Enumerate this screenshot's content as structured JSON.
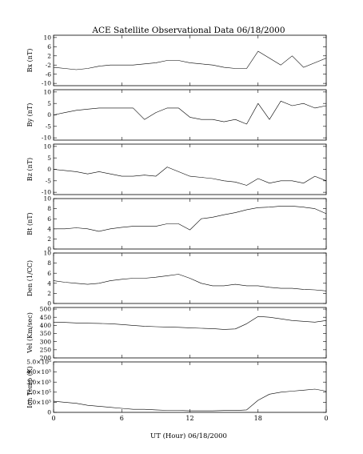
{
  "chart_data": {
    "type": "line",
    "title": "ACE Satellite Observational Data   06/18/2000",
    "xlabel": "UT (Hour)   06/18/2000",
    "x_range_hours": [
      0,
      24
    ],
    "x_ticks": [
      {
        "hour": 0,
        "label": "0"
      },
      {
        "hour": 6,
        "label": "6"
      },
      {
        "hour": 12,
        "label": "12"
      },
      {
        "hour": 18,
        "label": "18"
      },
      {
        "hour": 24,
        "label": "0"
      }
    ],
    "panels": [
      {
        "ylabel": "Bx (nT)",
        "ylim": [
          -11,
          11
        ],
        "y_ticks": [
          {
            "v": 10,
            "label": "10"
          },
          {
            "v": 6,
            "label": "6"
          },
          {
            "v": 2,
            "label": "2"
          },
          {
            "v": -2,
            "label": "-2"
          },
          {
            "v": -6,
            "label": "-6"
          },
          {
            "v": -10,
            "label": "-10"
          }
        ],
        "x": [
          0,
          1,
          2,
          3,
          4,
          5,
          6,
          7,
          8,
          9,
          10,
          11,
          12,
          13,
          14,
          15,
          16,
          17,
          18,
          19,
          20,
          21,
          22,
          23,
          24
        ],
        "y": [
          -3,
          -3.5,
          -4,
          -3.5,
          -2.5,
          -2,
          -2,
          -2,
          -1.5,
          -1,
          0,
          0,
          -1,
          -1.5,
          -2,
          -3,
          -3.5,
          -3.5,
          4,
          1,
          -2,
          2,
          -3,
          -1,
          1
        ]
      },
      {
        "ylabel": "By (nT)",
        "ylim": [
          -11,
          11
        ],
        "y_ticks": [
          {
            "v": 10,
            "label": "10"
          },
          {
            "v": 5,
            "label": "5"
          },
          {
            "v": 0,
            "label": "0"
          },
          {
            "v": -5,
            "label": "-5"
          },
          {
            "v": -10,
            "label": "-10"
          }
        ],
        "x": [
          0,
          1,
          2,
          3,
          4,
          5,
          6,
          7,
          8,
          9,
          10,
          11,
          12,
          13,
          14,
          15,
          16,
          17,
          18,
          19,
          20,
          21,
          22,
          23,
          24
        ],
        "y": [
          0,
          1,
          2,
          2.5,
          3,
          3,
          3,
          3,
          -2,
          1,
          3,
          3,
          -1,
          -2,
          -2,
          -3,
          -2,
          -4,
          5,
          -2,
          6,
          4,
          5,
          3,
          4
        ]
      },
      {
        "ylabel": "Bz (nT)",
        "ylim": [
          -11,
          11
        ],
        "y_ticks": [
          {
            "v": 10,
            "label": "10"
          },
          {
            "v": 5,
            "label": "5"
          },
          {
            "v": 0,
            "label": "0"
          },
          {
            "v": -5,
            "label": "-5"
          },
          {
            "v": -10,
            "label": "-10"
          }
        ],
        "x": [
          0,
          1,
          2,
          3,
          4,
          5,
          6,
          7,
          8,
          9,
          10,
          11,
          12,
          13,
          14,
          15,
          16,
          17,
          18,
          19,
          20,
          21,
          22,
          23,
          24
        ],
        "y": [
          0,
          -0.5,
          -1,
          -2,
          -1,
          -2,
          -3,
          -3,
          -2.5,
          -3,
          1,
          -1,
          -3,
          -3.5,
          -4,
          -5,
          -5.5,
          -7,
          -4,
          -6,
          -5,
          -5,
          -6,
          -3,
          -5
        ]
      },
      {
        "ylabel": "Bt (nT)",
        "ylim": [
          0,
          10
        ],
        "y_ticks": [
          {
            "v": 10,
            "label": "10"
          },
          {
            "v": 8,
            "label": "8"
          },
          {
            "v": 6,
            "label": "6"
          },
          {
            "v": 4,
            "label": "4"
          },
          {
            "v": 2,
            "label": "2"
          },
          {
            "v": 0,
            "label": "0"
          }
        ],
        "x": [
          0,
          1,
          2,
          3,
          4,
          5,
          6,
          7,
          8,
          9,
          10,
          11,
          12,
          13,
          14,
          15,
          16,
          17,
          18,
          19,
          20,
          21,
          22,
          23,
          24
        ],
        "y": [
          4,
          4,
          4.2,
          4,
          3.5,
          4,
          4.3,
          4.5,
          4.5,
          4.5,
          5,
          5,
          3.8,
          6,
          6.3,
          6.8,
          7.2,
          7.8,
          8.2,
          8.3,
          8.5,
          8.5,
          8.3,
          8,
          7
        ]
      },
      {
        "ylabel": "Den (1/CC)",
        "ylim": [
          0,
          10
        ],
        "y_ticks": [
          {
            "v": 10,
            "label": "10"
          },
          {
            "v": 8,
            "label": "8"
          },
          {
            "v": 6,
            "label": "6"
          },
          {
            "v": 4,
            "label": "4"
          },
          {
            "v": 2,
            "label": "2"
          },
          {
            "v": 0,
            "label": "0"
          }
        ],
        "x": [
          0,
          1,
          2,
          3,
          4,
          5,
          6,
          7,
          8,
          9,
          10,
          11,
          12,
          13,
          14,
          15,
          16,
          17,
          18,
          19,
          20,
          21,
          22,
          23,
          24
        ],
        "y": [
          4.5,
          4.2,
          4,
          3.8,
          4,
          4.5,
          4.8,
          5,
          5,
          5.2,
          5.5,
          5.8,
          5,
          4,
          3.5,
          3.5,
          3.8,
          3.5,
          3.5,
          3.2,
          3,
          3,
          2.8,
          2.7,
          2.5
        ]
      },
      {
        "ylabel": "Vel (Km/sec)",
        "ylim": [
          200,
          510
        ],
        "y_ticks": [
          {
            "v": 500,
            "label": "500"
          },
          {
            "v": 450,
            "label": "450"
          },
          {
            "v": 400,
            "label": "400"
          },
          {
            "v": 350,
            "label": "350"
          },
          {
            "v": 300,
            "label": "300"
          },
          {
            "v": 250,
            "label": "250"
          },
          {
            "v": 200,
            "label": "200"
          }
        ],
        "x": [
          0,
          1,
          2,
          3,
          4,
          5,
          6,
          7,
          8,
          9,
          10,
          11,
          12,
          13,
          14,
          15,
          16,
          17,
          18,
          19,
          20,
          21,
          22,
          23,
          24
        ],
        "y": [
          420,
          418,
          415,
          413,
          412,
          410,
          405,
          400,
          395,
          392,
          390,
          388,
          385,
          382,
          380,
          375,
          378,
          410,
          455,
          450,
          440,
          430,
          425,
          420,
          430
        ]
      },
      {
        "ylabel": "Ion Temp (K)",
        "ylim": [
          0,
          500000
        ],
        "y_ticks": [
          {
            "v": 500000,
            "label": "5.0×10⁵"
          },
          {
            "v": 400000,
            "label": "4.0×10⁵"
          },
          {
            "v": 300000,
            "label": "3.0×10⁵"
          },
          {
            "v": 200000,
            "label": "2.0×10⁵"
          },
          {
            "v": 100000,
            "label": "1.0×10⁵"
          },
          {
            "v": 0,
            "label": "0"
          }
        ],
        "x": [
          0,
          1,
          2,
          3,
          4,
          5,
          6,
          7,
          8,
          9,
          10,
          11,
          12,
          13,
          14,
          15,
          16,
          17,
          18,
          19,
          20,
          21,
          22,
          23,
          24
        ],
        "y": [
          110000,
          100000,
          90000,
          70000,
          60000,
          50000,
          40000,
          30000,
          30000,
          25000,
          20000,
          20000,
          15000,
          15000,
          15000,
          18000,
          18000,
          25000,
          120000,
          180000,
          200000,
          210000,
          220000,
          230000,
          210000
        ]
      }
    ]
  }
}
